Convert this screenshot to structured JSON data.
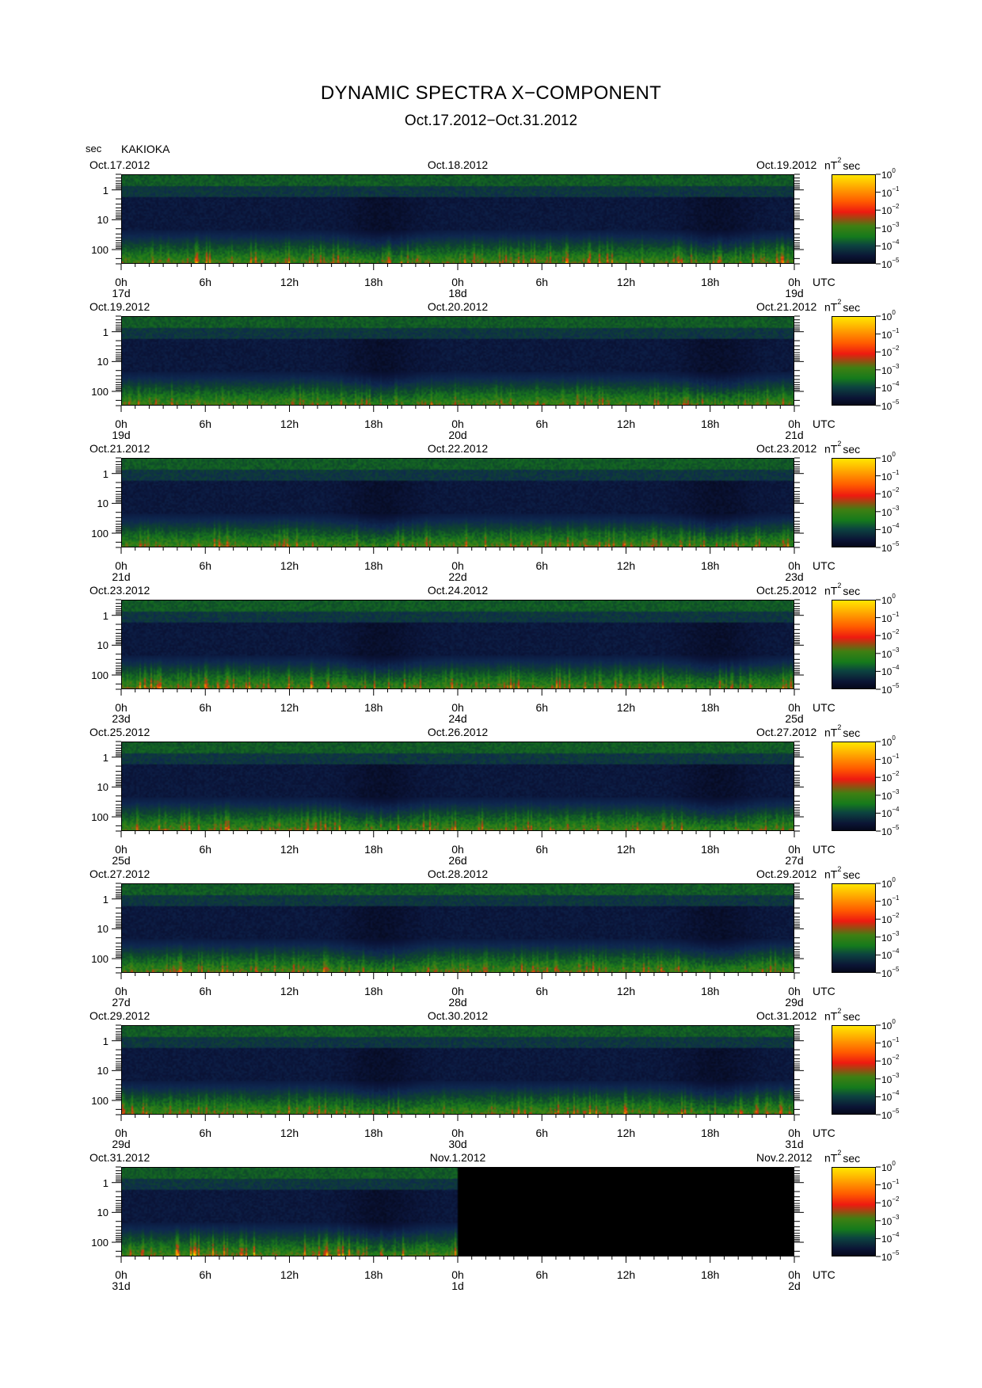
{
  "header": {
    "title": "DYNAMIC SPECTRA X−COMPONENT",
    "date_range": "Oct.17.2012−Oct.31.2012",
    "axis_unit": "sec",
    "station": "KAKIOKA"
  },
  "common": {
    "y_ticks": [
      "1",
      "10",
      "100"
    ],
    "x_hours": [
      "0h",
      "6h",
      "12h",
      "18h",
      "0h",
      "6h",
      "12h",
      "18h",
      "0h"
    ],
    "x_unit": "UTC",
    "cbar_unit": "nT",
    "cbar_unit_exp": "2",
    "cbar_unit_suffix": "sec",
    "cbar_ticks": [
      "10",
      "10",
      "10",
      "10",
      "10",
      "10"
    ],
    "cbar_exps": [
      "0",
      "−1",
      "−2",
      "−3",
      "−4",
      "−5"
    ]
  },
  "colors": {
    "high": "#ffe600",
    "mid_high": "#ff3a00",
    "mid": "#1f7a1a",
    "low": "#0b1535",
    "background": "#05081a"
  },
  "chart_data": {
    "type": "heatmap",
    "title": "DYNAMIC SPECTRA X−COMPONENT",
    "ylabel": "sec",
    "y_scale": "log",
    "ylim": [
      0.3,
      300
    ],
    "color_scale": "log",
    "color_range": [
      1e-05,
      1
    ],
    "panels": [
      {
        "date_left": "Oct.17.2012",
        "date_mid": "Oct.18.2012",
        "date_right": "Oct.19.2012",
        "day_labels": [
          "17d",
          "18d",
          "19d"
        ],
        "data_fraction": 1.0,
        "intensity": 0.55
      },
      {
        "date_left": "Oct.19.2012",
        "date_mid": "Oct.20.2012",
        "date_right": "Oct.21.2012",
        "day_labels": [
          "19d",
          "20d",
          "21d"
        ],
        "data_fraction": 1.0,
        "intensity": 0.4
      },
      {
        "date_left": "Oct.21.2012",
        "date_mid": "Oct.22.2012",
        "date_right": "Oct.23.2012",
        "day_labels": [
          "21d",
          "22d",
          "23d"
        ],
        "data_fraction": 1.0,
        "intensity": 0.45
      },
      {
        "date_left": "Oct.23.2012",
        "date_mid": "Oct.24.2012",
        "date_right": "Oct.25.2012",
        "day_labels": [
          "23d",
          "24d",
          "25d"
        ],
        "data_fraction": 1.0,
        "intensity": 0.6
      },
      {
        "date_left": "Oct.25.2012",
        "date_mid": "Oct.26.2012",
        "date_right": "Oct.27.2012",
        "day_labels": [
          "25d",
          "26d",
          "27d"
        ],
        "data_fraction": 1.0,
        "intensity": 0.5
      },
      {
        "date_left": "Oct.27.2012",
        "date_mid": "Oct.28.2012",
        "date_right": "Oct.29.2012",
        "day_labels": [
          "27d",
          "28d",
          "29d"
        ],
        "data_fraction": 1.0,
        "intensity": 0.45
      },
      {
        "date_left": "Oct.29.2012",
        "date_mid": "Oct.30.2012",
        "date_right": "Oct.31.2012",
        "day_labels": [
          "29d",
          "30d",
          "31d"
        ],
        "data_fraction": 1.0,
        "intensity": 0.5
      },
      {
        "date_left": "Oct.31.2012",
        "date_mid": "Nov.1.2012",
        "date_right": "Nov.2.2012",
        "day_labels": [
          "31d",
          "1d",
          "2d"
        ],
        "data_fraction": 0.5,
        "intensity": 0.7
      }
    ]
  }
}
